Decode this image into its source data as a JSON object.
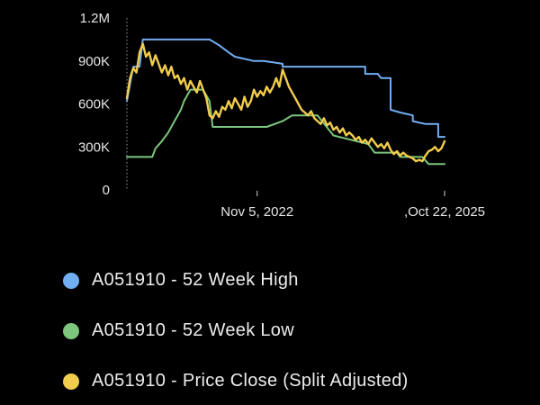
{
  "chart_data": {
    "type": "line",
    "y_ticks": [
      "0",
      "300K",
      "600K",
      "900K",
      "1.2M"
    ],
    "y_tick_values": [
      0,
      300000,
      600000,
      900000,
      1200000
    ],
    "ylim": [
      0,
      1200000
    ],
    "x_tick_labels": [
      "Nov 5, 2022",
      ",Oct 22, 2025"
    ],
    "x_tick_positions": [
      0.41,
      1.0
    ],
    "grid": false,
    "legend_position": "bottom",
    "series": [
      {
        "name": "A051910 - 52 Week High",
        "color": "#72aef2",
        "x": [
          0,
          0.02,
          0.04,
          0.05,
          0.07,
          0.2,
          0.26,
          0.29,
          0.32,
          0.34,
          0.36,
          0.38,
          0.4,
          0.43,
          0.46,
          0.49,
          0.49,
          0.69,
          0.75,
          0.75,
          0.79,
          0.8,
          0.83,
          0.83,
          0.86,
          0.9,
          0.9,
          0.94,
          0.98,
          0.98,
          1.0
        ],
        "values": [
          620000,
          860000,
          860000,
          1050000,
          1050000,
          1050000,
          1050000,
          1010000,
          960000,
          930000,
          920000,
          910000,
          900000,
          900000,
          890000,
          880000,
          860000,
          860000,
          860000,
          810000,
          810000,
          780000,
          780000,
          560000,
          540000,
          520000,
          480000,
          460000,
          460000,
          370000,
          370000
        ]
      },
      {
        "name": "A051910 - 52 Week Low",
        "color": "#7cc67d",
        "x": [
          0,
          0.08,
          0.09,
          0.11,
          0.13,
          0.15,
          0.17,
          0.18,
          0.2,
          0.22,
          0.24,
          0.26,
          0.27,
          0.35,
          0.44,
          0.49,
          0.52,
          0.6,
          0.65,
          0.76,
          0.78,
          0.85,
          0.86,
          0.93,
          0.95,
          1.0
        ],
        "values": [
          230000,
          230000,
          290000,
          340000,
          400000,
          480000,
          560000,
          620000,
          700000,
          700000,
          700000,
          620000,
          440000,
          440000,
          440000,
          480000,
          520000,
          520000,
          380000,
          320000,
          260000,
          260000,
          230000,
          230000,
          180000,
          180000
        ]
      },
      {
        "name": "A051910 - Price Close (Split Adjusted)",
        "color": "#f2cc4c",
        "x": [
          0,
          0.01,
          0.02,
          0.03,
          0.04,
          0.05,
          0.06,
          0.07,
          0.08,
          0.09,
          0.1,
          0.11,
          0.12,
          0.13,
          0.14,
          0.15,
          0.16,
          0.17,
          0.18,
          0.19,
          0.2,
          0.21,
          0.22,
          0.23,
          0.24,
          0.25,
          0.26,
          0.27,
          0.28,
          0.29,
          0.3,
          0.31,
          0.32,
          0.33,
          0.34,
          0.35,
          0.36,
          0.37,
          0.38,
          0.39,
          0.4,
          0.41,
          0.42,
          0.43,
          0.44,
          0.45,
          0.46,
          0.47,
          0.48,
          0.49,
          0.5,
          0.51,
          0.52,
          0.53,
          0.54,
          0.55,
          0.56,
          0.57,
          0.58,
          0.59,
          0.6,
          0.61,
          0.62,
          0.63,
          0.64,
          0.65,
          0.66,
          0.67,
          0.68,
          0.69,
          0.7,
          0.71,
          0.72,
          0.73,
          0.74,
          0.75,
          0.76,
          0.77,
          0.78,
          0.79,
          0.8,
          0.81,
          0.82,
          0.83,
          0.84,
          0.85,
          0.86,
          0.87,
          0.88,
          0.89,
          0.9,
          0.91,
          0.92,
          0.93,
          0.94,
          0.95,
          0.96,
          0.97,
          0.98,
          0.99,
          1.0
        ],
        "values": [
          640000,
          780000,
          850000,
          820000,
          960000,
          1020000,
          930000,
          960000,
          870000,
          940000,
          880000,
          820000,
          870000,
          800000,
          860000,
          780000,
          800000,
          740000,
          780000,
          700000,
          760000,
          720000,
          680000,
          760000,
          700000,
          640000,
          520000,
          500000,
          550000,
          510000,
          580000,
          560000,
          620000,
          570000,
          640000,
          600000,
          560000,
          650000,
          580000,
          620000,
          700000,
          650000,
          690000,
          660000,
          720000,
          680000,
          720000,
          780000,
          720000,
          840000,
          780000,
          720000,
          680000,
          640000,
          600000,
          560000,
          540000,
          520000,
          550000,
          500000,
          480000,
          460000,
          500000,
          450000,
          470000,
          420000,
          440000,
          400000,
          430000,
          380000,
          400000,
          380000,
          350000,
          370000,
          330000,
          350000,
          320000,
          360000,
          330000,
          300000,
          320000,
          290000,
          330000,
          280000,
          250000,
          270000,
          240000,
          260000,
          240000,
          230000,
          220000,
          200000,
          210000,
          200000,
          240000,
          270000,
          280000,
          300000,
          270000,
          290000,
          340000
        ]
      }
    ]
  }
}
